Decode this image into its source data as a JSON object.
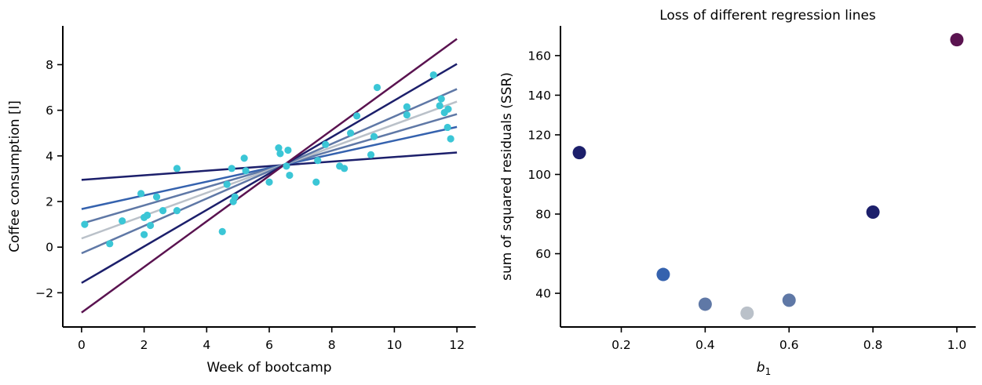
{
  "chart_data": [
    {
      "type": "scatter",
      "title": "",
      "xlabel": "Week of bootcamp",
      "ylabel": "Coffee consumption [l]",
      "xlim": [
        -0.6,
        12.6
      ],
      "ylim": [
        -3.5,
        9.7
      ],
      "xticks": [
        0,
        2,
        4,
        6,
        8,
        10,
        12
      ],
      "yticks": [
        -2,
        0,
        2,
        4,
        6,
        8
      ],
      "grid": false,
      "points": {
        "color": "#3bc6d6",
        "x": [
          0.1,
          0.9,
          1.3,
          1.9,
          2.0,
          2.0,
          2.1,
          2.2,
          2.4,
          2.6,
          3.05,
          3.05,
          4.5,
          4.65,
          4.8,
          4.85,
          4.9,
          5.2,
          5.25,
          6.0,
          6.3,
          6.35,
          6.55,
          6.6,
          6.65,
          7.5,
          7.55,
          7.8,
          8.25,
          8.4,
          8.6,
          8.8,
          9.25,
          9.35,
          9.45,
          10.4,
          10.4,
          11.25,
          11.45,
          11.5,
          11.6,
          11.7,
          11.72,
          11.8
        ],
        "y": [
          1.0,
          0.15,
          1.15,
          2.35,
          1.3,
          0.55,
          1.4,
          0.95,
          2.2,
          1.6,
          1.6,
          3.45,
          0.68,
          2.75,
          3.45,
          2.0,
          2.2,
          3.9,
          3.35,
          2.85,
          4.35,
          4.1,
          3.55,
          4.25,
          3.15,
          2.85,
          3.8,
          4.5,
          3.55,
          3.45,
          5.0,
          5.75,
          4.05,
          4.85,
          7.0,
          6.15,
          5.8,
          7.55,
          6.2,
          6.5,
          5.9,
          5.25,
          6.05,
          4.75
        ]
      },
      "lines": [
        {
          "b1": 0.1,
          "b0": 2.95,
          "color": "#1c1f6b"
        },
        {
          "b1": 0.3,
          "b0": 1.67,
          "color": "#3562ae"
        },
        {
          "b1": 0.4,
          "b0": 1.03,
          "color": "#5f78a6"
        },
        {
          "b1": 0.5,
          "b0": 0.38,
          "color": "#bac1c9"
        },
        {
          "b1": 0.6,
          "b0": -0.27,
          "color": "#5f78a6"
        },
        {
          "b1": 0.8,
          "b0": -1.57,
          "color": "#1c1f6b"
        },
        {
          "b1": 1.0,
          "b0": -2.87,
          "color": "#5a1350"
        }
      ]
    },
    {
      "type": "scatter",
      "title": "Loss of different regression lines",
      "xlabel": "b1",
      "ylabel": "sum of squared residuals (SSR)",
      "xlim": [
        0.055,
        1.045
      ],
      "ylim": [
        23,
        175
      ],
      "xticks": [
        0.2,
        0.4,
        0.6,
        0.8,
        1.0
      ],
      "xtick_labels": [
        "0.2",
        "0.4",
        "0.6",
        "0.8",
        "1.0"
      ],
      "yticks": [
        40,
        60,
        80,
        100,
        120,
        140,
        160
      ],
      "grid": false,
      "points": [
        {
          "x": 0.1,
          "y": 111,
          "color": "#1c1f6b"
        },
        {
          "x": 0.3,
          "y": 49.5,
          "color": "#3562ae"
        },
        {
          "x": 0.4,
          "y": 34.5,
          "color": "#5f78a6"
        },
        {
          "x": 0.5,
          "y": 30,
          "color": "#bac1c9"
        },
        {
          "x": 0.6,
          "y": 36.5,
          "color": "#5f78a6"
        },
        {
          "x": 0.8,
          "y": 81,
          "color": "#1c1f6b"
        },
        {
          "x": 1.0,
          "y": 168,
          "color": "#5a1350"
        }
      ]
    }
  ]
}
